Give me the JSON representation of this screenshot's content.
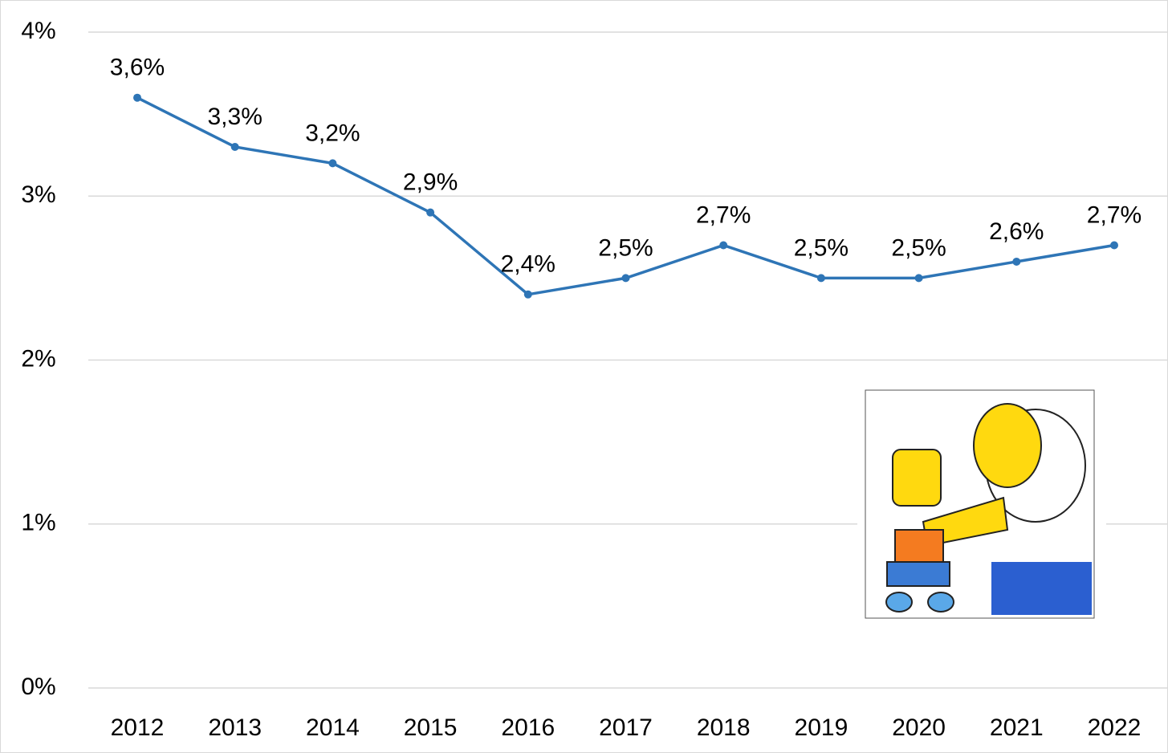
{
  "chart_data": {
    "type": "line",
    "categories": [
      "2012",
      "2013",
      "2014",
      "2015",
      "2016",
      "2017",
      "2018",
      "2019",
      "2020",
      "2021",
      "2022"
    ],
    "series": [
      {
        "color": "#2e75b6",
        "values": [
          3.6,
          3.3,
          3.2,
          2.9,
          2.4,
          2.5,
          2.7,
          2.5,
          2.5,
          2.6,
          2.7
        ],
        "value_labels": [
          "3,6%",
          "3,3%",
          "3,2%",
          "2,9%",
          "2,4%",
          "2,5%",
          "2,7%",
          "2,5%",
          "2,5%",
          "2,6%",
          "2,7%"
        ]
      }
    ],
    "ylim": [
      0,
      4
    ],
    "yticks": [
      {
        "value": 0,
        "label": "0%"
      },
      {
        "value": 1,
        "label": "1%"
      },
      {
        "value": 2,
        "label": "2%"
      },
      {
        "value": 3,
        "label": "3%"
      },
      {
        "value": 4,
        "label": "4%"
      }
    ],
    "grid": true
  }
}
